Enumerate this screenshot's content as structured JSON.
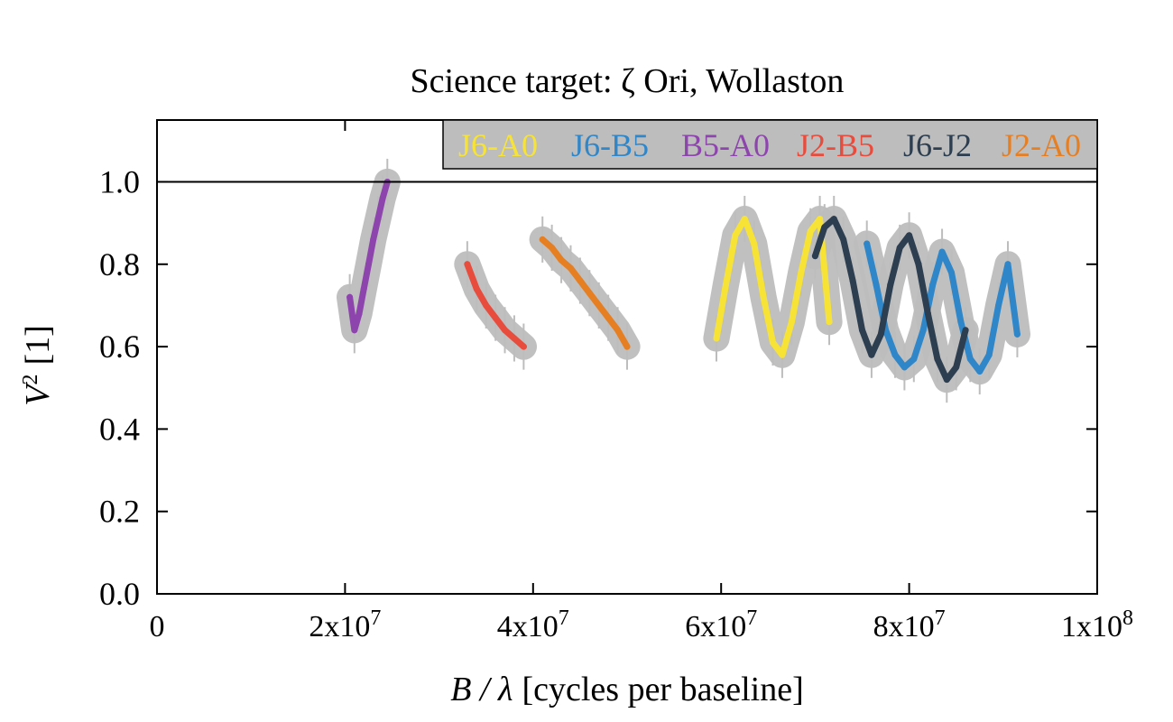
{
  "chart_data": {
    "type": "scatter",
    "title": "Science target: ζ Ori, Wollaston",
    "xlabel_italic": "B / λ",
    "xlabel_rest": "[cycles per baseline]",
    "ylabel_italic": "V",
    "ylabel_sup": "2",
    "ylabel_rest": "[1]",
    "xlim": [
      0,
      100000000
    ],
    "ylim": [
      0.0,
      1.15
    ],
    "x_ticks": [
      {
        "value": 0,
        "base": "0",
        "exp": ""
      },
      {
        "value": 20000000,
        "base": "2x10",
        "exp": "7"
      },
      {
        "value": 40000000,
        "base": "4x10",
        "exp": "7"
      },
      {
        "value": 60000000,
        "base": "6x10",
        "exp": "7"
      },
      {
        "value": 80000000,
        "base": "8x10",
        "exp": "7"
      },
      {
        "value": 100000000,
        "base": "1x10",
        "exp": "8"
      }
    ],
    "y_ticks": [
      {
        "value": 0.0,
        "label": "0.0"
      },
      {
        "value": 0.2,
        "label": "0.2"
      },
      {
        "value": 0.4,
        "label": "0.4"
      },
      {
        "value": 0.6,
        "label": "0.6"
      },
      {
        "value": 0.8,
        "label": "0.8"
      },
      {
        "value": 1.0,
        "label": "1.0"
      }
    ],
    "reference_line_y": 1.0,
    "grid": false,
    "legend_position": "top-right",
    "legend_background": "#bdbdbd",
    "errorbar_color": "#bdbdbd",
    "series": [
      {
        "name": "J6-A0",
        "color": "#f7e336",
        "x": [
          59500000,
          60500000,
          61500000,
          62500000,
          63500000,
          64500000,
          65500000,
          66500000,
          67500000,
          68500000,
          69500000,
          70500000,
          71500000
        ],
        "y": [
          0.62,
          0.75,
          0.87,
          0.91,
          0.85,
          0.72,
          0.61,
          0.58,
          0.66,
          0.78,
          0.88,
          0.91,
          0.66
        ]
      },
      {
        "name": "J6-B5",
        "color": "#2f86c8",
        "x": [
          75500000,
          76500000,
          77500000,
          78500000,
          79500000,
          80500000,
          81500000,
          82500000,
          83500000,
          84500000,
          85500000,
          86500000,
          87500000,
          88500000,
          89500000,
          90500000,
          91500000
        ],
        "y": [
          0.85,
          0.75,
          0.64,
          0.58,
          0.55,
          0.57,
          0.64,
          0.75,
          0.83,
          0.78,
          0.66,
          0.57,
          0.54,
          0.58,
          0.7,
          0.8,
          0.63
        ]
      },
      {
        "name": "B5-A0",
        "color": "#8e44ad",
        "x": [
          20500000,
          21000000,
          21500000,
          22000000,
          22500000,
          23000000,
          23500000,
          24000000,
          24500000
        ],
        "y": [
          0.72,
          0.64,
          0.68,
          0.74,
          0.8,
          0.86,
          0.91,
          0.96,
          1.0
        ]
      },
      {
        "name": "J2-B5",
        "color": "#e74c3c",
        "x": [
          33000000,
          34000000,
          35000000,
          36000000,
          37000000,
          38000000,
          39000000
        ],
        "y": [
          0.8,
          0.74,
          0.7,
          0.67,
          0.64,
          0.62,
          0.6
        ]
      },
      {
        "name": "J6-J2",
        "color": "#2c3e50",
        "x": [
          70000000,
          71000000,
          72000000,
          73000000,
          74000000,
          75000000,
          76000000,
          77000000,
          78000000,
          79000000,
          80000000,
          81000000,
          82000000,
          83000000,
          84000000,
          85000000,
          86000000
        ],
        "y": [
          0.82,
          0.89,
          0.91,
          0.86,
          0.76,
          0.64,
          0.58,
          0.63,
          0.75,
          0.84,
          0.87,
          0.8,
          0.68,
          0.57,
          0.52,
          0.55,
          0.64
        ]
      },
      {
        "name": "J2-A0",
        "color": "#e67e22",
        "x": [
          41000000,
          42000000,
          43000000,
          44000000,
          45000000,
          46000000,
          47000000,
          48000000,
          49000000,
          50000000
        ],
        "y": [
          0.86,
          0.84,
          0.81,
          0.79,
          0.76,
          0.73,
          0.7,
          0.67,
          0.64,
          0.6
        ]
      }
    ]
  }
}
